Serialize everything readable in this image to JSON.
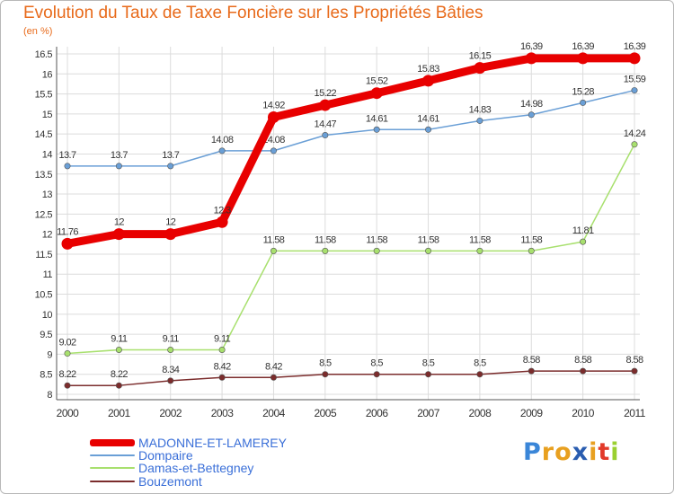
{
  "header": {
    "title": "Evolution du Taux de Taxe Foncière sur les Propriétés Bâties",
    "unit": "(en %)"
  },
  "chart_data": {
    "type": "line",
    "title": "Evolution du Taux de Taxe Foncière sur les Propriétés Bâties",
    "ylabel": "(en %)",
    "xlabel": "",
    "ylim": [
      8,
      16.5
    ],
    "yticks": [
      8,
      8.5,
      9,
      9.5,
      10,
      10.5,
      11,
      11.5,
      12,
      12.5,
      13,
      13.5,
      14,
      14.5,
      15,
      15.5,
      16,
      16.5
    ],
    "categories": [
      "2000",
      "2001",
      "2002",
      "2003",
      "2004",
      "2005",
      "2006",
      "2007",
      "2008",
      "2009",
      "2010",
      "2011"
    ],
    "grid": true,
    "legend_position": "bottom-left",
    "series": [
      {
        "name": "MADONNE-ET-LAMEREY",
        "color": "#e80000",
        "values": [
          11.76,
          12,
          12,
          12.3,
          14.92,
          15.22,
          15.52,
          15.83,
          16.15,
          16.39,
          16.39,
          16.39
        ],
        "labels": [
          "11.76",
          "12",
          "12",
          "12.3",
          "14.92",
          "15.22",
          "15.52",
          "15.83",
          "16.15",
          "16.39",
          "16.39",
          "16.39"
        ]
      },
      {
        "name": "Dompaire",
        "color": "#6a9fd6",
        "values": [
          13.7,
          13.7,
          13.7,
          14.08,
          14.08,
          14.47,
          14.61,
          14.61,
          14.83,
          14.98,
          15.28,
          15.59
        ],
        "labels": [
          "13.7",
          "13.7",
          "13.7",
          "14.08",
          "14.08",
          "14.47",
          "14.61",
          "14.61",
          "14.83",
          "14.98",
          "15.28",
          "15.59"
        ]
      },
      {
        "name": "Damas-et-Bettegney",
        "color": "#a8e06e",
        "values": [
          9.02,
          9.11,
          9.11,
          9.11,
          11.58,
          11.58,
          11.58,
          11.58,
          11.58,
          11.58,
          11.81,
          14.24
        ],
        "labels": [
          "9.02",
          "9.11",
          "9.11",
          "9.11",
          "11.58",
          "11.58",
          "11.58",
          "11.58",
          "11.58",
          "11.58",
          "11.81",
          "14.24"
        ]
      },
      {
        "name": "Bouzemont",
        "color": "#7b2c2c",
        "values": [
          8.22,
          8.22,
          8.34,
          8.42,
          8.42,
          8.5,
          8.5,
          8.5,
          8.5,
          8.58,
          8.58,
          8.58
        ],
        "labels": [
          "8.22",
          "8.22",
          "8.34",
          "8.42",
          "8.42",
          "8.5",
          "8.5",
          "8.5",
          "8.5",
          "8.58",
          "8.58",
          "8.58"
        ]
      }
    ]
  },
  "logo": {
    "letters": [
      "P",
      "r",
      "o",
      "x",
      "i",
      "t",
      "i"
    ],
    "colors": [
      "#3a86d8",
      "#e8a020",
      "#e8a020",
      "#2a5db0",
      "#e8a020",
      "#e23a2a",
      "#9ad030"
    ]
  }
}
